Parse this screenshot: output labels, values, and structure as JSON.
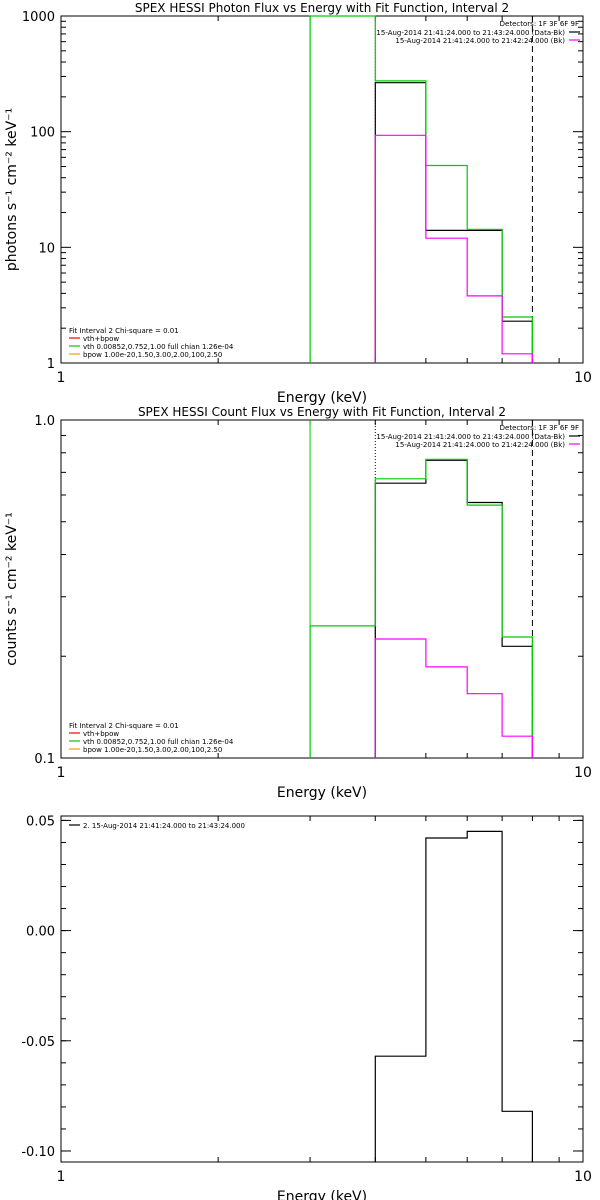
{
  "chart_data": [
    {
      "type": "line",
      "title": "SPEX HESSI Photon Flux vs Energy with Fit Function, Interval 2",
      "xlabel": "Energy (keV)",
      "ylabel": "photons s⁻¹ cm⁻² keV⁻¹",
      "xscale": "log",
      "yscale": "log",
      "xlim": [
        1,
        10
      ],
      "ylim": [
        1,
        1000
      ],
      "xticks": [
        {
          "v": 1,
          "label": "1"
        },
        {
          "v": 10,
          "label": "10"
        }
      ],
      "yticks": [
        {
          "v": 1,
          "label": "1"
        },
        {
          "v": 10,
          "label": "10"
        },
        {
          "v": 100,
          "label": "100"
        },
        {
          "v": 1000,
          "label": "1000"
        }
      ],
      "colors": {
        "data": "#000000",
        "fit": "#00cc00",
        "vth": "#ff00ff",
        "bpow": "#ff9900",
        "thick": "#ff0000"
      },
      "legend_right": {
        "title": "Detectors: 1F 3F 6F 9F",
        "lines": [
          {
            "text": "15-Aug-2014 21:41:24.000 to 21:43:24.000 (Data-Bk)",
            "color": "#000000"
          },
          {
            "text": "15-Aug-2014 21:41:24.000 to 21:42:24.000 (Bk)",
            "color": "#ff00ff"
          }
        ]
      },
      "legend_left": {
        "title": "Fit Interval 2   Chi-square = 0.01",
        "lines": [
          {
            "text": "vth+bpow",
            "color": "#ff0000"
          },
          {
            "text": "vth 0.00852,0.752,1.00   full chian 1.26e-04",
            "color": "#00cc00"
          },
          {
            "text": "bpow 1.00e-20,1.50,3.00,2.00,100,2.50",
            "color": "#ff9900"
          }
        ]
      },
      "series": [
        {
          "name": "Data-Bk",
          "color": "#000000",
          "edges": [
            4,
            5,
            6,
            7,
            8
          ],
          "values": [
            265,
            14,
            14,
            2.3
          ]
        },
        {
          "name": "Fit",
          "color": "#00cc00",
          "edges": [
            3,
            4,
            5,
            6,
            7,
            8
          ],
          "values": [
            1000,
            275,
            51,
            14.3,
            2.5
          ]
        },
        {
          "name": "Bk",
          "color": "#ff00ff",
          "edges": [
            4,
            5,
            6,
            7,
            8
          ],
          "values": [
            93,
            12,
            3.8,
            1.2
          ]
        }
      ],
      "vlines": [
        {
          "x": 3,
          "color": "#00cc00",
          "style": "solid"
        },
        {
          "x": 4,
          "color": "#ff00ff",
          "style": "dotted"
        },
        {
          "x": 8,
          "color": "#000000",
          "style": "dashed"
        }
      ]
    },
    {
      "type": "line",
      "title": "SPEX HESSI Count Flux vs Energy with Fit Function, Interval 2",
      "xlabel": "Energy (keV)",
      "ylabel": "counts s⁻¹ cm⁻² keV⁻¹",
      "xscale": "log",
      "yscale": "log",
      "xlim": [
        1,
        10
      ],
      "ylim": [
        0.1,
        1.0
      ],
      "xticks": [
        {
          "v": 1,
          "label": "1"
        },
        {
          "v": 10,
          "label": "10"
        }
      ],
      "yticks": [
        {
          "v": 0.1,
          "label": "0.1"
        },
        {
          "v": 1.0,
          "label": "1.0"
        }
      ],
      "legend_right": {
        "title": "Detectors: 1F 3F 6F 9F",
        "lines": [
          {
            "text": "15-Aug-2014 21:41:24.000 to 21:43:24.000 (Data-Bk)",
            "color": "#000000"
          },
          {
            "text": "15-Aug-2014 21:41:24.000 to 21:42:24.000 (Bk)",
            "color": "#ff00ff"
          }
        ]
      },
      "legend_left": {
        "title": "Fit Interval 2   Chi-square = 0.01",
        "lines": [
          {
            "text": "vth+bpow",
            "color": "#ff0000"
          },
          {
            "text": "vth 0.00852,0.752,1.00   full chian 1.26e-04",
            "color": "#00cc00"
          },
          {
            "text": "bpow 1.00e-20,1.50,3.00,2.00,100,2.50",
            "color": "#ff9900"
          }
        ]
      },
      "series": [
        {
          "name": "Data-Bk",
          "color": "#000000",
          "edges": [
            4,
            5,
            6,
            7,
            8
          ],
          "values": [
            0.65,
            0.76,
            0.57,
            0.214
          ]
        },
        {
          "name": "Fit",
          "color": "#00cc00",
          "edges": [
            3,
            4,
            5,
            6,
            7,
            8
          ],
          "values": [
            0.246,
            0.67,
            0.765,
            0.56,
            0.228
          ]
        },
        {
          "name": "Bk",
          "color": "#ff00ff",
          "edges": [
            4,
            5,
            6,
            7,
            8
          ],
          "values": [
            0.225,
            0.186,
            0.155,
            0.116
          ]
        }
      ],
      "vlines": [
        {
          "x": 3,
          "color": "#00cc00",
          "style": "solid"
        },
        {
          "x": 4,
          "color": "#000000",
          "style": "dotted"
        },
        {
          "x": 8,
          "color": "#000000",
          "style": "dashed"
        }
      ]
    },
    {
      "type": "line",
      "title": "",
      "xlabel": "Energy (keV)",
      "ylabel": "",
      "xscale": "log",
      "yscale": "linear",
      "xlim": [
        1,
        10
      ],
      "ylim": [
        -0.105,
        0.052
      ],
      "xticks": [
        {
          "v": 1,
          "label": "1"
        },
        {
          "v": 10,
          "label": "10"
        }
      ],
      "yticks": [
        {
          "v": 0.05,
          "label": "0.05"
        },
        {
          "v": 0.0,
          "label": "0.00"
        },
        {
          "v": -0.05,
          "label": "-0.05"
        },
        {
          "v": -0.1,
          "label": "-0.10"
        }
      ],
      "legend_left": {
        "title": "",
        "lines": [
          {
            "text": "2. 15-Aug-2014 21:41:24.000 to 21:43:24.000",
            "color": "#000000"
          }
        ]
      },
      "series": [
        {
          "name": "",
          "color": "#000000",
          "edges": [
            4,
            5,
            6,
            7,
            8
          ],
          "values": [
            -0.057,
            0.042,
            0.045,
            -0.082
          ]
        }
      ],
      "vlines": []
    }
  ]
}
